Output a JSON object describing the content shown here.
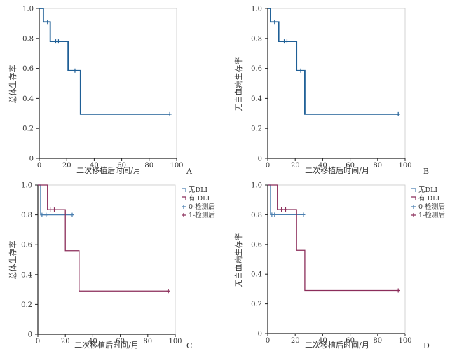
{
  "chart_data": [
    {
      "type": "line",
      "panel_label": "A",
      "xlabel": "二次移植后时间/月",
      "ylabel": "总体生存率",
      "xlim": [
        0,
        100
      ],
      "ylim": [
        0,
        1.0
      ],
      "xticks": [
        "0",
        "20",
        "40",
        "60",
        "80",
        "100"
      ],
      "yticks": [
        "0",
        "0.2",
        "0.4",
        "0.6",
        "0.8",
        "1.0"
      ],
      "grid": false,
      "series": [
        {
          "color": "#1f5f96",
          "steps": [
            [
              0,
              1.0
            ],
            [
              3,
              0.91
            ],
            [
              8,
              0.78
            ],
            [
              21,
              0.585
            ],
            [
              30,
              0.295
            ],
            [
              95,
              0.295
            ]
          ],
          "censored": [
            [
              6,
              0.91
            ],
            [
              12,
              0.78
            ],
            [
              14,
              0.78
            ],
            [
              26,
              0.585
            ],
            [
              95,
              0.295
            ]
          ]
        }
      ]
    },
    {
      "type": "line",
      "panel_label": "B",
      "xlabel": "二次移植后时间/月",
      "ylabel": "无白血病生存率",
      "xlim": [
        0,
        100
      ],
      "ylim": [
        0,
        1.0
      ],
      "xticks": [
        "0",
        "20",
        "40",
        "60",
        "80",
        "100"
      ],
      "yticks": [
        "0",
        "0.2",
        "0.4",
        "0.6",
        "0.8",
        "1.0"
      ],
      "grid": false,
      "series": [
        {
          "color": "#1f5f96",
          "steps": [
            [
              0,
              1.0
            ],
            [
              2,
              0.91
            ],
            [
              8,
              0.78
            ],
            [
              21,
              0.585
            ],
            [
              27,
              0.295
            ],
            [
              95,
              0.295
            ]
          ],
          "censored": [
            [
              5,
              0.91
            ],
            [
              12,
              0.78
            ],
            [
              14,
              0.78
            ],
            [
              24,
              0.585
            ],
            [
              95,
              0.295
            ]
          ]
        }
      ]
    },
    {
      "type": "line",
      "panel_label": "C",
      "xlabel": "二次移植后时间/月",
      "ylabel": "总体生存率",
      "xlim": [
        0,
        100
      ],
      "ylim": [
        0,
        1.0
      ],
      "xticks": [
        "0",
        "20",
        "40",
        "60",
        "80",
        "100"
      ],
      "yticks": [
        "0",
        "0.2",
        "0.4",
        "0.6",
        "0.8",
        "1.0"
      ],
      "grid": false,
      "legend_position": "top-right",
      "legend": [
        {
          "label": "无DLI",
          "color": "#4a7fb0",
          "symbol": "step"
        },
        {
          "label": "有 DLI",
          "color": "#8b2d5a",
          "symbol": "step"
        },
        {
          "label": "0-检测后",
          "color": "#4a7fb0",
          "symbol": "cross"
        },
        {
          "label": "1-检测后",
          "color": "#8b2d5a",
          "symbol": "cross"
        }
      ],
      "series": [
        {
          "name": "无DLI",
          "color": "#4a7fb0",
          "steps": [
            [
              0,
              1.0
            ],
            [
              2,
              0.8
            ],
            [
              25,
              0.8
            ]
          ],
          "censored": [
            [
              3,
              0.8
            ],
            [
              6,
              0.8
            ],
            [
              25,
              0.8
            ]
          ]
        },
        {
          "name": "有 DLI",
          "color": "#8b2d5a",
          "steps": [
            [
              0,
              1.0
            ],
            [
              7,
              0.835
            ],
            [
              20,
              0.56
            ],
            [
              30,
              0.29
            ],
            [
              95,
              0.29
            ]
          ],
          "censored": [
            [
              9,
              0.835
            ],
            [
              12,
              0.835
            ],
            [
              95,
              0.29
            ]
          ]
        }
      ]
    },
    {
      "type": "line",
      "panel_label": "D",
      "xlabel": "二次移植后时间/月",
      "ylabel": "无白血病生存率",
      "xlim": [
        0,
        100
      ],
      "ylim": [
        0,
        1.0
      ],
      "xticks": [
        "0",
        "20",
        "40",
        "60",
        "80",
        "100"
      ],
      "yticks": [
        "0",
        "0.2",
        "0.4",
        "0.6",
        "0.8",
        "1.0"
      ],
      "grid": false,
      "legend_position": "top-right",
      "legend": [
        {
          "label": "无DLI",
          "color": "#4a7fb0",
          "symbol": "step"
        },
        {
          "label": "有 DLI",
          "color": "#8b2d5a",
          "symbol": "step"
        },
        {
          "label": "0-检测后",
          "color": "#4a7fb0",
          "symbol": "cross"
        },
        {
          "label": "1-检测后",
          "color": "#8b2d5a",
          "symbol": "cross"
        }
      ],
      "series": [
        {
          "name": "无DLI",
          "color": "#4a7fb0",
          "steps": [
            [
              0,
              1.0
            ],
            [
              2,
              0.8
            ],
            [
              26,
              0.8
            ]
          ],
          "censored": [
            [
              3,
              0.8
            ],
            [
              5,
              0.8
            ],
            [
              26,
              0.8
            ]
          ]
        },
        {
          "name": "有 DLI",
          "color": "#8b2d5a",
          "steps": [
            [
              0,
              1.0
            ],
            [
              7,
              0.835
            ],
            [
              21,
              0.56
            ],
            [
              27,
              0.29
            ],
            [
              95,
              0.29
            ]
          ],
          "censored": [
            [
              10,
              0.835
            ],
            [
              13,
              0.835
            ],
            [
              95,
              0.29
            ]
          ]
        }
      ]
    }
  ]
}
